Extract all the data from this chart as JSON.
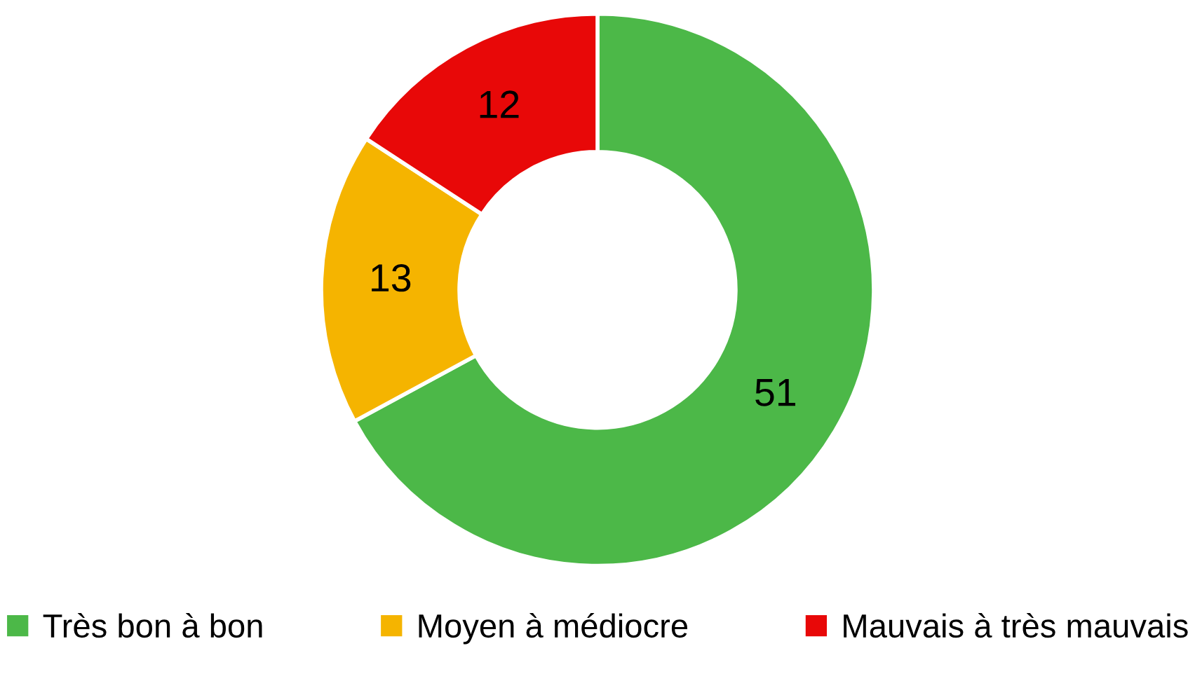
{
  "chart_data": {
    "type": "donut",
    "categories": [
      "Très bon à bon",
      "Moyen à médiocre",
      "Mauvais à très mauvais"
    ],
    "values": [
      51,
      13,
      12
    ],
    "colors": [
      "#4cb848",
      "#f5b400",
      "#e80808"
    ],
    "data_labels": true,
    "legend": "bottom"
  }
}
